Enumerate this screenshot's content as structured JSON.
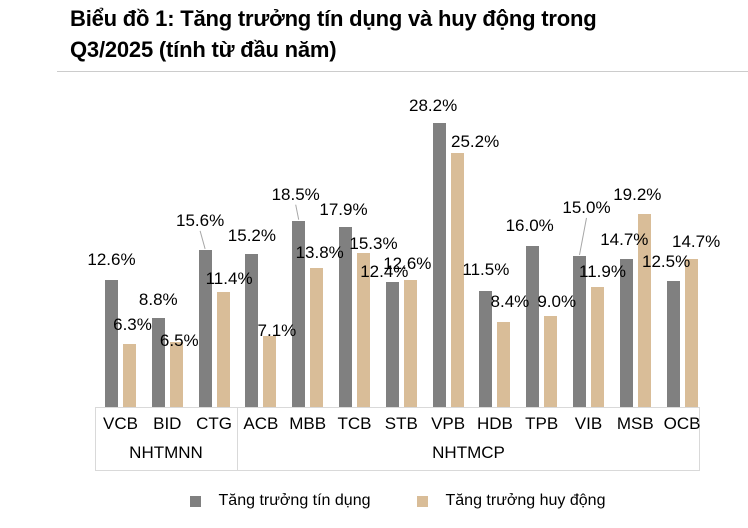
{
  "page": {
    "title_line1": "Biểu đồ 1: Tăng trưởng tín dụng và huy động trong",
    "title_line2": "Q3/2025 (tính từ đầu năm)"
  },
  "chart_data": {
    "type": "bar",
    "title": "Biểu đồ 1: Tăng trưởng tín dụng và huy động trong Q3/2025 (tính từ đầu năm)",
    "categories": [
      "VCB",
      "BID",
      "CTG",
      "ACB",
      "MBB",
      "TCB",
      "STB",
      "VPB",
      "HDB",
      "TPB",
      "VIB",
      "MSB",
      "OCB"
    ],
    "category_groups": [
      {
        "label": "NHTMNN",
        "span": 3
      },
      {
        "label": "NHTMCP",
        "span": 10
      }
    ],
    "series": [
      {
        "name": "Tăng trưởng tín dụng",
        "key": "credit",
        "color": "#808080",
        "values": [
          12.6,
          8.8,
          15.6,
          15.2,
          18.5,
          17.9,
          12.4,
          28.2,
          11.5,
          16.0,
          15.0,
          14.7,
          12.5
        ]
      },
      {
        "name": "Tăng trưởng huy động",
        "key": "deposit",
        "color": "#d9bd98",
        "values": [
          6.3,
          6.5,
          11.4,
          7.1,
          13.8,
          15.3,
          12.6,
          25.2,
          8.4,
          9.0,
          11.9,
          19.2,
          14.7
        ]
      }
    ],
    "value_suffix": "%",
    "value_decimals": 1,
    "xlabel": "",
    "ylabel": "",
    "ylim": [
      0,
      30
    ],
    "grid": false,
    "y_axis_visible": false,
    "legend_position": "bottom",
    "leader_line_color": "#a6a6a6",
    "axis_border_color": "#d9d9d9"
  }
}
